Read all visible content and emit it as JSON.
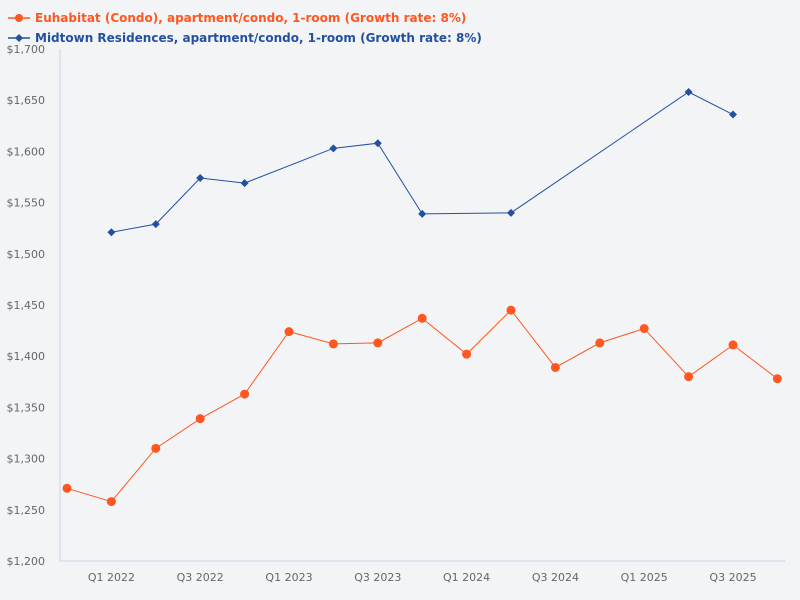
{
  "chart_data": {
    "type": "line",
    "title": "",
    "xlabel": "",
    "ylabel": "",
    "categories": [
      "Q4 2021",
      "Q1 2022",
      "Q2 2022",
      "Q3 2022",
      "Q4 2022",
      "Q1 2023",
      "Q2 2023",
      "Q3 2023",
      "Q4 2023",
      "Q1 2024",
      "Q2 2024",
      "Q3 2024",
      "Q4 2024",
      "Q1 2025",
      "Q2 2025",
      "Q3 2025",
      "Q4 2025"
    ],
    "x_tick_labels": [
      "Q1 2022",
      "Q3 2022",
      "Q1 2023",
      "Q3 2023",
      "Q1 2024",
      "Q3 2024",
      "Q1 2025",
      "Q3 2025"
    ],
    "y_tick_labels": [
      "$1,200",
      "$1,250",
      "$1,300",
      "$1,350",
      "$1,400",
      "$1,450",
      "$1,500",
      "$1,550",
      "$1,600",
      "$1,650",
      "$1,700"
    ],
    "ylim": [
      1200,
      1700
    ],
    "grid": false,
    "legend_position": "top-left",
    "series": [
      {
        "name": "Euhabitat (Condo), apartment/condo, 1-room (Growth rate: 8%)",
        "color": "#ff5722",
        "marker": "circle",
        "values": [
          1271,
          1258,
          1310,
          1339,
          1363,
          1424,
          1412,
          1413,
          1437,
          1402,
          1445,
          1389,
          1413,
          1427,
          1380,
          1411,
          1378
        ]
      },
      {
        "name": "Midtown Residences, apartment/condo, 1-room (Growth rate: 8%)",
        "color": "#2350a0",
        "marker": "diamond",
        "values": [
          null,
          1521,
          1529,
          1574,
          1569,
          null,
          1603,
          1608,
          1539,
          null,
          1540,
          null,
          null,
          null,
          1658,
          1636,
          null
        ]
      }
    ]
  }
}
